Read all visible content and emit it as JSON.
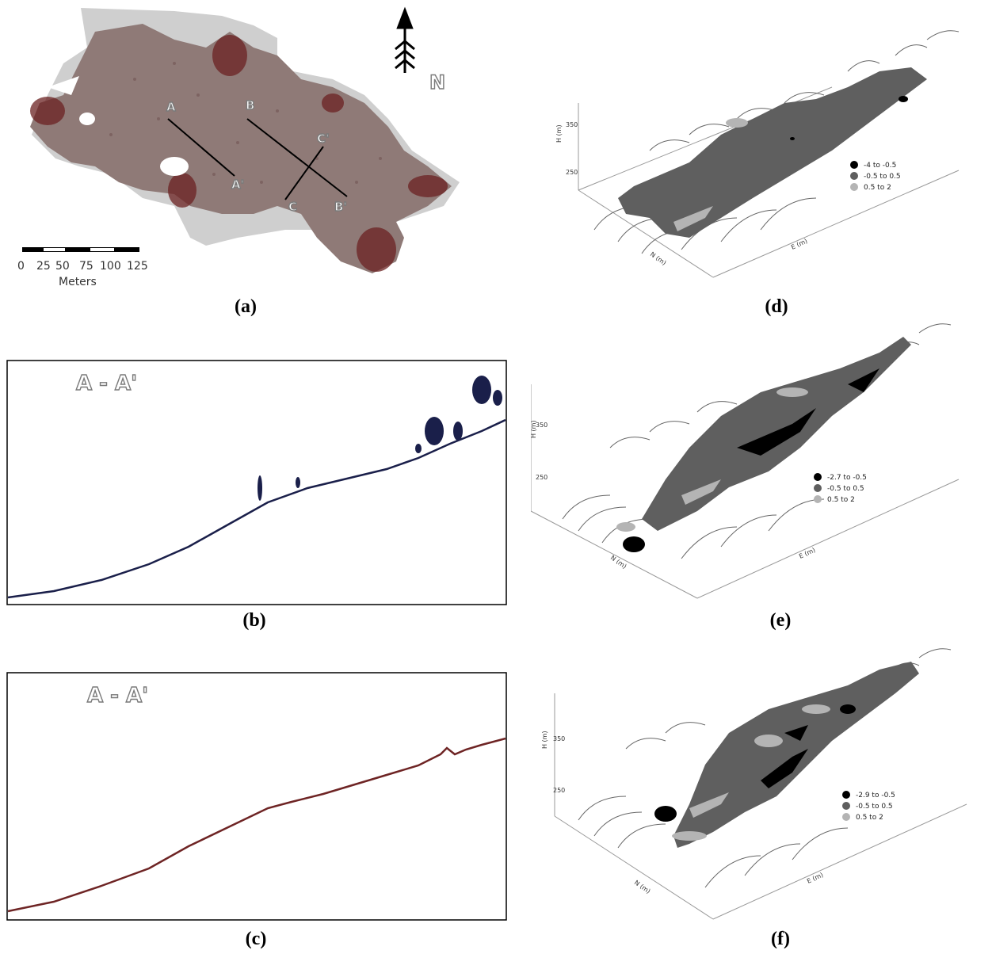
{
  "captions": [
    "(a)",
    "(b)",
    "(c)",
    "(d)",
    "(e)",
    "(f)"
  ],
  "map": {
    "north_label": "N",
    "scale_ticks": [
      "0",
      "25",
      "50",
      "75",
      "100",
      "125"
    ],
    "scale_unit": "Meters",
    "section_labels": [
      "A",
      "A'",
      "B",
      "B'",
      "C",
      "C'"
    ],
    "colors": {
      "point_cloud": "#8a6f6c",
      "canopy": "#6b1e1e",
      "bare": "#c9c9c9"
    }
  },
  "profiles": {
    "b_label": "A - A'",
    "c_label": "A - A'",
    "b_color": "#1a1f4a",
    "c_color": "#6e2424"
  },
  "views3d": [
    {
      "zlabel": "H (m)",
      "zticks": [
        "350",
        "250"
      ],
      "ylabel": "N (m)",
      "xlabel": "E (m)",
      "legend": [
        "-4  to  -0.5",
        "-0.5  to  0.5",
        "0.5  to  2"
      ]
    },
    {
      "zlabel": "H (m)",
      "zticks": [
        "350",
        "250"
      ],
      "ylabel": "N (m)",
      "xlabel": "E (m)",
      "legend": [
        "-2.7  to  -0.5",
        "-0.5  to  0.5",
        "0.5  to  2"
      ]
    },
    {
      "zlabel": "H (m)",
      "zticks": [
        "350",
        "250"
      ],
      "ylabel": "N (m)",
      "xlabel": "E (m)",
      "legend": [
        "-2.9  to  -0.5",
        "-0.5  to  0.5",
        "0.5  to  2"
      ]
    }
  ],
  "legend_colors": [
    "#000000",
    "#5f5f5f",
    "#b4b4b4"
  ]
}
